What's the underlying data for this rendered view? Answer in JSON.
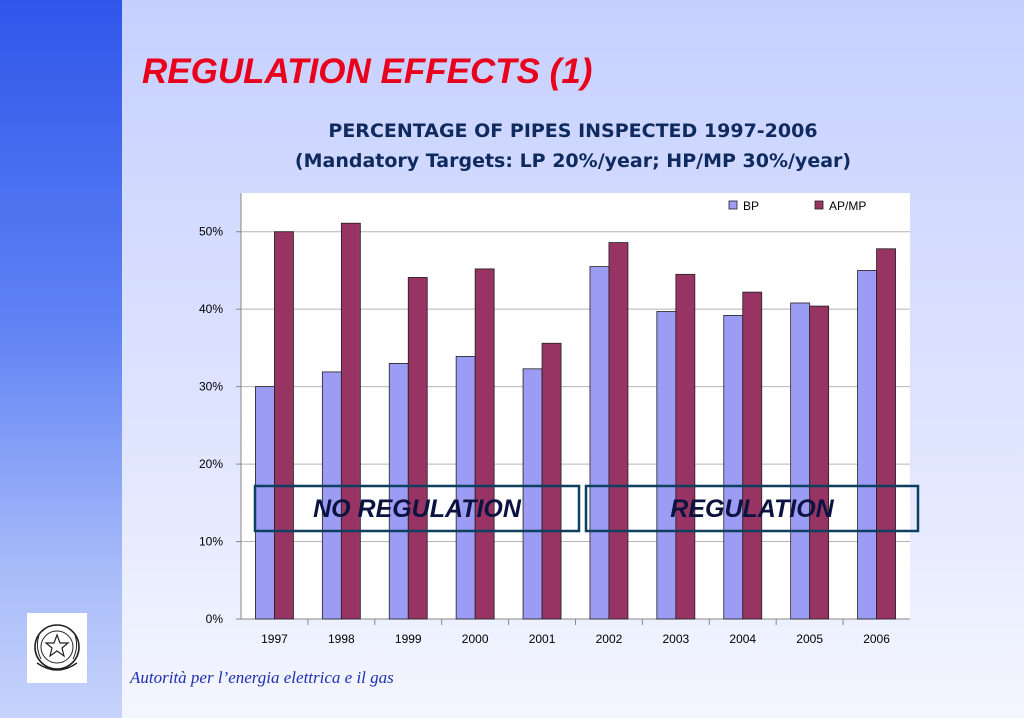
{
  "slide": {
    "title": "REGULATION EFFECTS (1)",
    "footer": "Autorità per l’energia elettrica e il gas",
    "emblem": "italian-republic-emblem-icon"
  },
  "colors": {
    "title": "#e8001c",
    "bp": "#9d9cf5",
    "ap_mp": "#983463",
    "period_box_border": "#0d3f5e",
    "sidebar": "#2f56ea"
  },
  "chart_data": {
    "type": "bar",
    "title": "PERCENTAGE OF PIPES INSPECTED 1997-2006",
    "subtitle": "(Mandatory Targets: LP 20%/year; HP/MP 30%/year)",
    "categories": [
      "1997",
      "1998",
      "1999",
      "2000",
      "2001",
      "2002",
      "2003",
      "2004",
      "2005",
      "2006"
    ],
    "series": [
      {
        "name": "BP",
        "values": [
          30.0,
          31.9,
          33.0,
          33.9,
          32.3,
          45.5,
          39.7,
          39.2,
          40.8,
          45.0
        ]
      },
      {
        "name": "AP/MP",
        "values": [
          50.0,
          51.1,
          44.1,
          45.2,
          35.6,
          48.6,
          44.5,
          42.2,
          40.4,
          47.8
        ]
      }
    ],
    "ylim": [
      0,
      55
    ],
    "yticks": [
      0,
      10,
      20,
      30,
      40,
      50
    ],
    "ytick_labels": [
      "0%",
      "10%",
      "20%",
      "30%",
      "40%",
      "50%"
    ],
    "grid": true,
    "legend_position": "top-right",
    "annotations": [
      {
        "text": "NO REGULATION",
        "from": "1997",
        "to": "2001"
      },
      {
        "text": "REGULATION",
        "from": "2002",
        "to": "2006"
      }
    ]
  }
}
